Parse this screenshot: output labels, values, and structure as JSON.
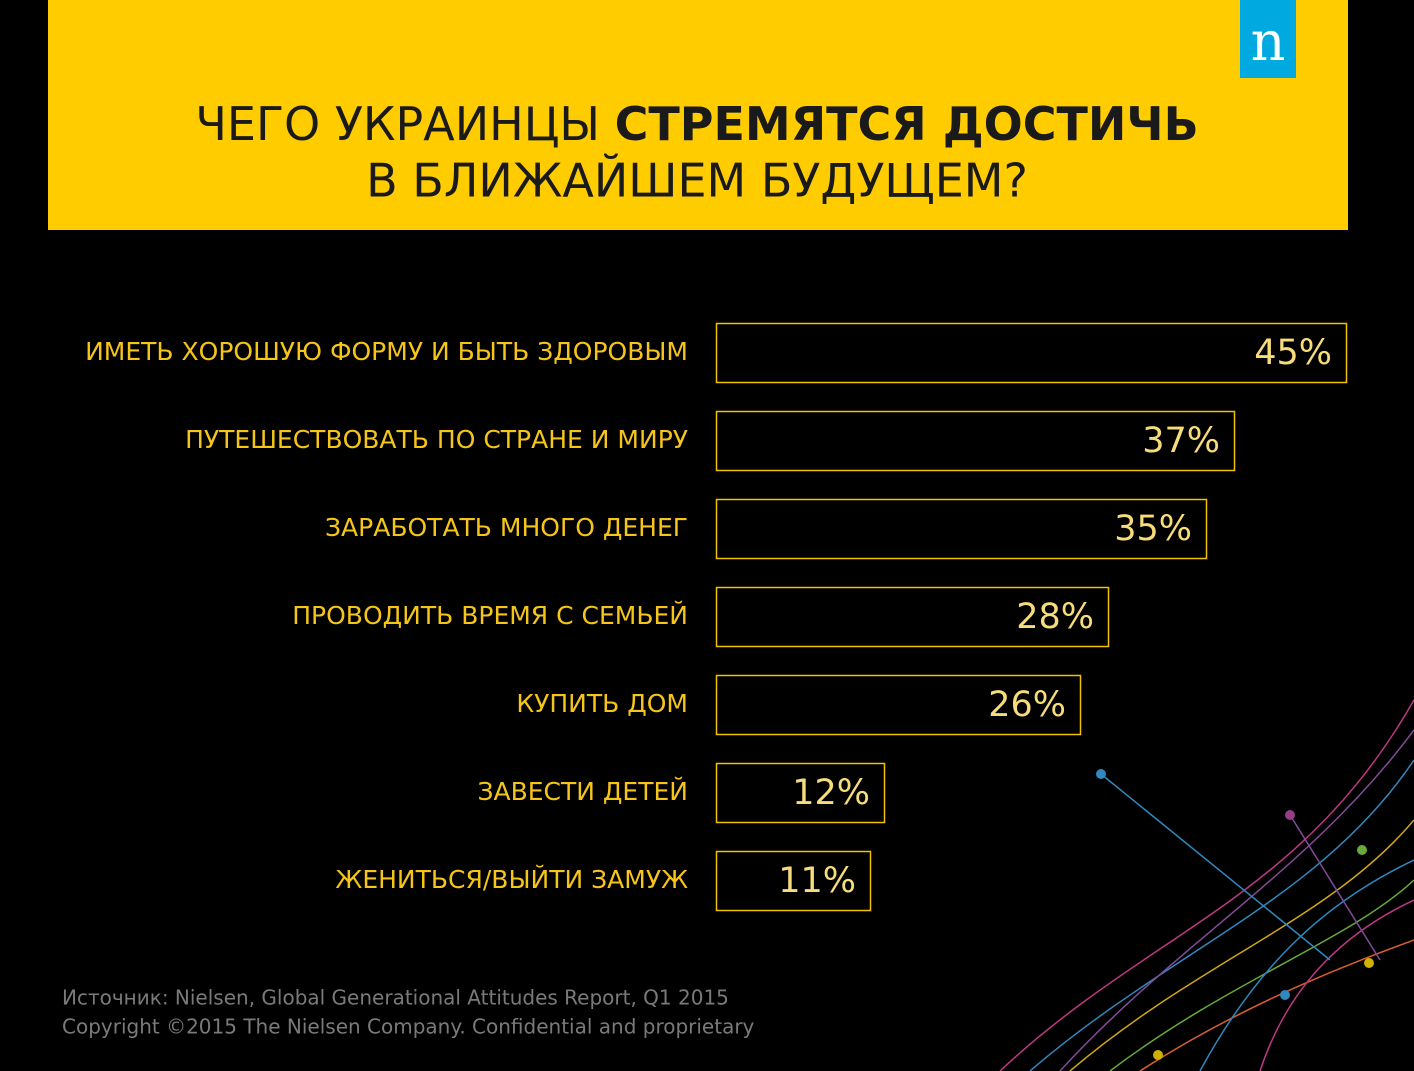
{
  "header": {
    "title_regular": "ЧЕГО УКРАИНЦЫ",
    "title_bold": "СТРЕМЯТСЯ ДОСТИЧЬ",
    "title_line2": "В БЛИЖАЙШЕМ БУДУЩЕМ?",
    "logo": "n"
  },
  "chart_data": {
    "type": "bar",
    "orientation": "horizontal",
    "categories": [
      "ИМЕТЬ ХОРОШУЮ ФОРМУ И БЫТЬ ЗДОРОВЫМ",
      "ПУТЕШЕСТВОВАТЬ ПО СТРАНЕ И МИРУ",
      "ЗАРАБОТАТЬ МНОГО ДЕНЕГ",
      "ПРОВОДИТЬ ВРЕМЯ С СЕМЬЕЙ",
      "КУПИТЬ ДОМ",
      "ЗАВЕСТИ ДЕТЕЙ",
      "ЖЕНИТЬСЯ/ВЫЙТИ ЗАМУЖ"
    ],
    "values": [
      45,
      37,
      35,
      28,
      26,
      12,
      11
    ],
    "value_labels": [
      "45%",
      "37%",
      "35%",
      "28%",
      "26%",
      "12%",
      "11%"
    ],
    "color": "#f2c200"
  },
  "footer": {
    "source": "Источник: Nielsen, Global  Generational Attitudes Report, Q1 2015",
    "copyright": "Copyright ©2015 The Nielsen Company. Confidential and proprietary"
  }
}
